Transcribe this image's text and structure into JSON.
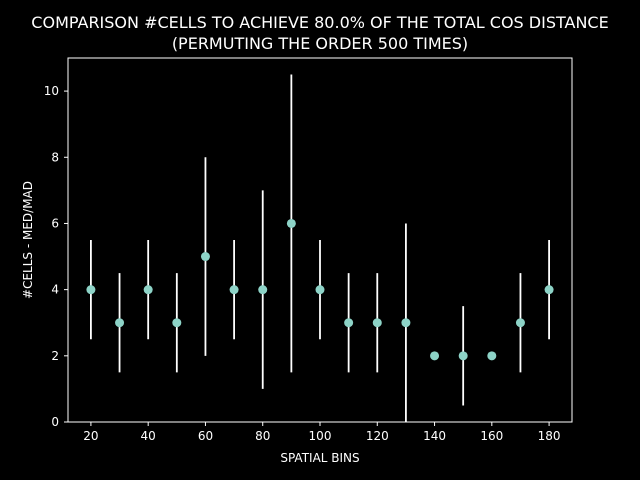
{
  "chart_data": {
    "type": "scatter",
    "title_line1": "COMPARISON #CELLS TO ACHIEVE 80.0% OF THE TOTAL COS DISTANCE",
    "title_line2": "(PERMUTING THE ORDER 500 TIMES)",
    "xlabel": "SPATIAL BINS",
    "ylabel": "#CELLS - MED/MAD",
    "xlim": [
      12,
      188
    ],
    "ylim": [
      0,
      11
    ],
    "xticks": [
      20,
      40,
      60,
      80,
      100,
      120,
      140,
      160,
      180
    ],
    "yticks": [
      0,
      2,
      4,
      6,
      8,
      10
    ],
    "grid": false,
    "legend": "none",
    "series": [
      {
        "x": [
          20,
          30,
          40,
          50,
          60,
          70,
          80,
          90,
          100,
          110,
          120,
          130,
          140,
          150,
          160,
          170,
          180
        ],
        "y": [
          4,
          3,
          4,
          3,
          5,
          4,
          4,
          6,
          4,
          3,
          3,
          3,
          2,
          2,
          2,
          3,
          4
        ],
        "yerr": [
          1.5,
          1.5,
          1.5,
          1.5,
          3,
          1.5,
          3,
          4.5,
          1.5,
          1.5,
          1.5,
          3,
          0,
          1.5,
          0,
          1.5,
          1.5
        ]
      }
    ],
    "colors": {
      "background": "#000000",
      "foreground": "#ffffff",
      "marker": "#8dd3c7",
      "errorbar": "#ffffff"
    }
  }
}
